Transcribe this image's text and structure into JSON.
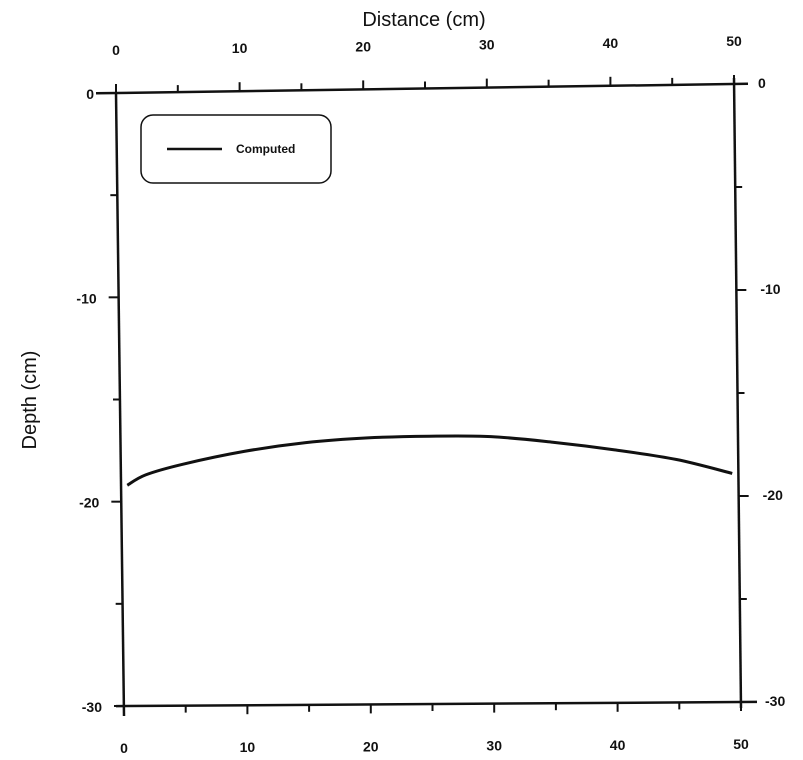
{
  "chart_data": {
    "type": "line",
    "title": "",
    "xlabel": "Distance (cm)",
    "ylabel": "Depth (cm)",
    "xlim": [
      0,
      50
    ],
    "ylim": [
      -30,
      0
    ],
    "x_ticks": [
      0,
      10,
      20,
      30,
      40,
      50
    ],
    "y_ticks": [
      0,
      -10,
      -20,
      -30
    ],
    "x_tick_labels": [
      "0",
      "10",
      "20",
      "30",
      "40",
      "50"
    ],
    "y_tick_labels": [
      "0",
      "-10",
      "-20",
      "-30"
    ],
    "grid": false,
    "legend": {
      "position": "top-left",
      "entries": [
        "Computed"
      ]
    },
    "series": [
      {
        "name": "Computed",
        "x": [
          0.5,
          2,
          5,
          10,
          15,
          20,
          25,
          30,
          35,
          40,
          45,
          49.5
        ],
        "y": [
          -19.2,
          -18.7,
          -18.2,
          -17.6,
          -17.2,
          -17.0,
          -16.95,
          -17.0,
          -17.3,
          -17.7,
          -18.2,
          -18.9
        ]
      }
    ]
  }
}
